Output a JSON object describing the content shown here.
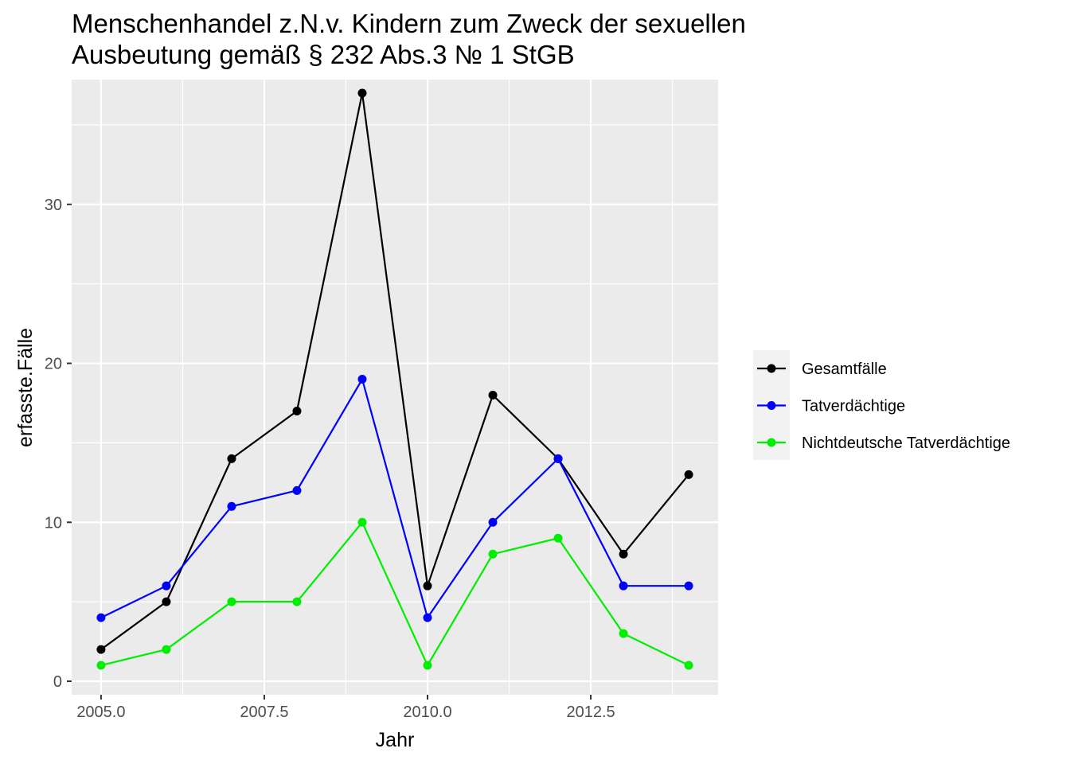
{
  "chart_data": {
    "type": "line",
    "title_lines": [
      "Menschenhandel z.N.v. Kindern zum Zweck der sexuellen",
      "Ausbeutung gemäß § 232 Abs.3 № 1 StGB"
    ],
    "xlabel": "Jahr",
    "ylabel": "erfasste.Fälle",
    "xlim": [
      2004.55,
      2014.45
    ],
    "ylim": [
      -0.85,
      37.85
    ],
    "x_ticks": [
      2005.0,
      2007.5,
      2010.0,
      2012.5
    ],
    "x_tick_labels": [
      "2005.0",
      "2007.5",
      "2010.0",
      "2012.5"
    ],
    "x_minor": [
      2006.25,
      2008.75,
      2011.25,
      2013.75
    ],
    "y_ticks": [
      0,
      10,
      20,
      30
    ],
    "y_tick_labels": [
      "0",
      "10",
      "20",
      "30"
    ],
    "y_minor": [
      5,
      15,
      25,
      35
    ],
    "grid": true,
    "legend_position": "right",
    "x": [
      2005,
      2006,
      2007,
      2008,
      2009,
      2010,
      2011,
      2012,
      2013,
      2014
    ],
    "series": [
      {
        "name": "Gesamtfälle",
        "color": "#000000",
        "values": [
          2,
          5,
          14,
          17,
          37,
          6,
          18,
          14,
          8,
          13
        ]
      },
      {
        "name": "Tatverdächtige",
        "color": "#0000ff",
        "values": [
          4,
          6,
          11,
          12,
          19,
          4,
          10,
          14,
          6,
          6
        ]
      },
      {
        "name": "Nichtdeutsche Tatverdächtige",
        "color": "#00ee00",
        "values": [
          1,
          2,
          5,
          5,
          10,
          1,
          8,
          9,
          3,
          1
        ]
      }
    ]
  }
}
